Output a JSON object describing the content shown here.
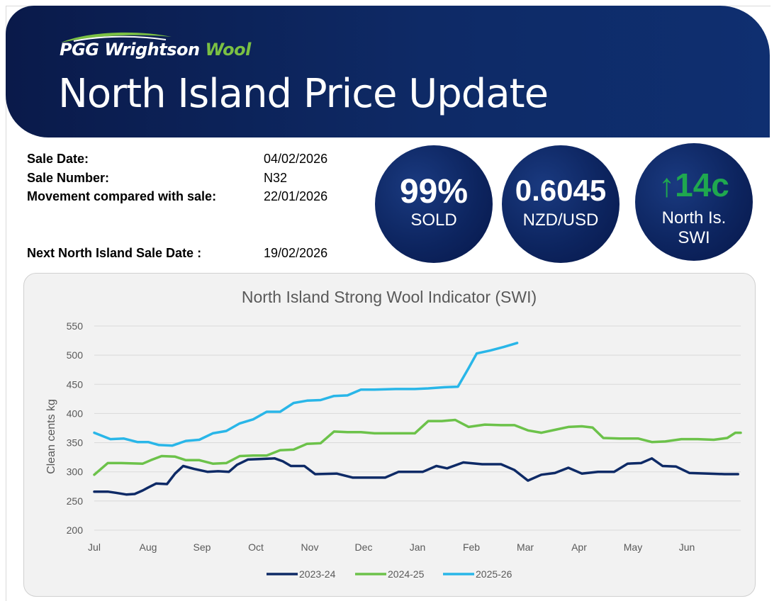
{
  "header": {
    "brand_main": "PGG Wrightson",
    "brand_accent": "Wool",
    "title": "North Island Price Update"
  },
  "sale_info": {
    "sale_date_label": "Sale Date:",
    "sale_date": "04/02/2026",
    "sale_number_label": "Sale Number:",
    "sale_number": "N32",
    "movement_label": "Movement compared with sale:",
    "movement_date": "22/01/2026",
    "next_sale_label": "Next North Island Sale Date :",
    "next_sale_date": "19/02/2026"
  },
  "stats": {
    "sold_value": "99%",
    "sold_label": "SOLD",
    "fx_value": "0.6045",
    "fx_label": "NZD/USD",
    "swi_arrow": "↑",
    "swi_value": "14c",
    "swi_label_1": "North Is.",
    "swi_label_2": "SWI"
  },
  "colors": {
    "navy": "#0d2560",
    "accent_green": "#1fa84f",
    "series_2023": "#0e2a66",
    "series_2024": "#6cc24a",
    "series_2025": "#29b6e8"
  },
  "chart_data": {
    "type": "line",
    "title": "North Island Strong Wool Indicator (SWI)",
    "xlabel": "",
    "ylabel": "Clean cents kg",
    "ylim": [
      200,
      550
    ],
    "yticks": [
      200,
      250,
      300,
      350,
      400,
      450,
      500,
      550
    ],
    "xlim": [
      0,
      12
    ],
    "xtick_labels": [
      "Jul",
      "Aug",
      "Sep",
      "Oct",
      "Nov",
      "Dec",
      "Jan",
      "Feb",
      "Mar",
      "Apr",
      "May",
      "Jun"
    ],
    "xtick_positions": [
      0,
      1,
      2,
      3,
      4,
      5,
      6,
      7,
      8,
      9,
      10,
      11
    ],
    "grid": true,
    "legend_position": "bottom",
    "series": [
      {
        "name": "2023-24",
        "points": [
          [
            0,
            266
          ],
          [
            0.25,
            266
          ],
          [
            0.4,
            264
          ],
          [
            0.6,
            261
          ],
          [
            0.75,
            262
          ],
          [
            0.9,
            268
          ],
          [
            1,
            273
          ],
          [
            1.15,
            280
          ],
          [
            1.35,
            279
          ],
          [
            1.5,
            297
          ],
          [
            1.65,
            310
          ],
          [
            1.85,
            305
          ],
          [
            2.1,
            300
          ],
          [
            2.3,
            301
          ],
          [
            2.5,
            300
          ],
          [
            2.65,
            312
          ],
          [
            2.85,
            321
          ],
          [
            3.1,
            322
          ],
          [
            3.35,
            323
          ],
          [
            3.5,
            318
          ],
          [
            3.65,
            310
          ],
          [
            3.9,
            310
          ],
          [
            4.1,
            296
          ],
          [
            4.5,
            297
          ],
          [
            4.8,
            290
          ],
          [
            5.1,
            290
          ],
          [
            5.4,
            290
          ],
          [
            5.65,
            300
          ],
          [
            6.1,
            300
          ],
          [
            6.35,
            310
          ],
          [
            6.55,
            306
          ],
          [
            6.85,
            316
          ],
          [
            7.2,
            313
          ],
          [
            7.55,
            313
          ],
          [
            7.8,
            303
          ],
          [
            8.05,
            285
          ],
          [
            8.3,
            295
          ],
          [
            8.55,
            298
          ],
          [
            8.8,
            307
          ],
          [
            9.05,
            297
          ],
          [
            9.35,
            300
          ],
          [
            9.65,
            300
          ],
          [
            9.9,
            314
          ],
          [
            10.15,
            315
          ],
          [
            10.35,
            323
          ],
          [
            10.55,
            310
          ],
          [
            10.8,
            309
          ],
          [
            11.05,
            298
          ],
          [
            11.4,
            297
          ],
          [
            11.7,
            296
          ],
          [
            11.95,
            296
          ]
        ]
      },
      {
        "name": "2024-25",
        "points": [
          [
            0,
            295
          ],
          [
            0.25,
            315
          ],
          [
            0.5,
            315
          ],
          [
            0.9,
            314
          ],
          [
            1.05,
            320
          ],
          [
            1.25,
            327
          ],
          [
            1.5,
            326
          ],
          [
            1.7,
            320
          ],
          [
            1.95,
            320
          ],
          [
            2.2,
            314
          ],
          [
            2.45,
            315
          ],
          [
            2.7,
            327
          ],
          [
            2.95,
            328
          ],
          [
            3.2,
            328
          ],
          [
            3.45,
            337
          ],
          [
            3.7,
            338
          ],
          [
            3.95,
            348
          ],
          [
            4.2,
            349
          ],
          [
            4.45,
            369
          ],
          [
            4.7,
            368
          ],
          [
            4.95,
            368
          ],
          [
            5.2,
            366
          ],
          [
            5.6,
            366
          ],
          [
            5.95,
            366
          ],
          [
            6.2,
            387
          ],
          [
            6.45,
            387
          ],
          [
            6.7,
            389
          ],
          [
            6.95,
            377
          ],
          [
            7.25,
            381
          ],
          [
            7.55,
            380
          ],
          [
            7.8,
            380
          ],
          [
            8.05,
            371
          ],
          [
            8.3,
            367
          ],
          [
            8.55,
            372
          ],
          [
            8.8,
            377
          ],
          [
            9.05,
            378
          ],
          [
            9.25,
            376
          ],
          [
            9.45,
            358
          ],
          [
            9.75,
            357
          ],
          [
            10.1,
            357
          ],
          [
            10.35,
            351
          ],
          [
            10.6,
            352
          ],
          [
            10.9,
            356
          ],
          [
            11.2,
            356
          ],
          [
            11.5,
            355
          ],
          [
            11.75,
            358
          ],
          [
            11.9,
            367
          ],
          [
            12,
            367
          ]
        ]
      },
      {
        "name": "2025-26",
        "points": [
          [
            0,
            367
          ],
          [
            0.3,
            356
          ],
          [
            0.55,
            357
          ],
          [
            0.8,
            351
          ],
          [
            1,
            351
          ],
          [
            1.2,
            346
          ],
          [
            1.45,
            345
          ],
          [
            1.7,
            353
          ],
          [
            1.95,
            355
          ],
          [
            2.2,
            366
          ],
          [
            2.45,
            370
          ],
          [
            2.7,
            383
          ],
          [
            2.95,
            390
          ],
          [
            3.2,
            403
          ],
          [
            3.45,
            403
          ],
          [
            3.7,
            418
          ],
          [
            3.95,
            422
          ],
          [
            4.2,
            423
          ],
          [
            4.45,
            430
          ],
          [
            4.7,
            431
          ],
          [
            4.95,
            441
          ],
          [
            5.2,
            441
          ],
          [
            5.6,
            442
          ],
          [
            5.95,
            442
          ],
          [
            6.2,
            443
          ],
          [
            6.5,
            445
          ],
          [
            6.75,
            446
          ],
          [
            6.95,
            478
          ],
          [
            7.1,
            503
          ],
          [
            7.35,
            508
          ],
          [
            7.6,
            514
          ],
          [
            7.85,
            521
          ]
        ]
      }
    ]
  }
}
